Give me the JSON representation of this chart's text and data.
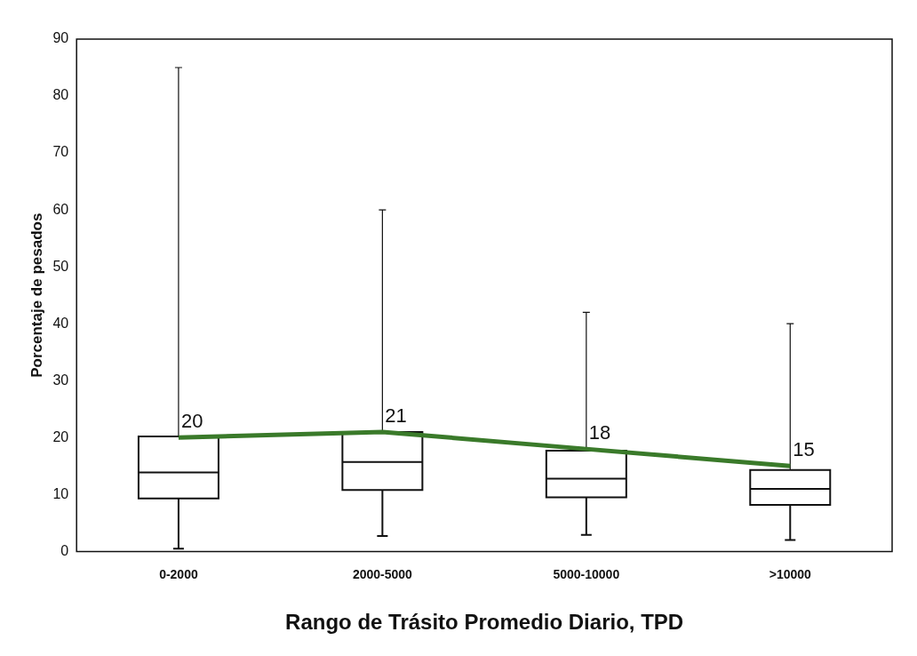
{
  "chart_data": {
    "type": "box",
    "xlabel": "Rango de Trásito Promedio Diario, TPD",
    "ylabel": "Porcentaje de pesados",
    "categories": [
      "0-2000",
      "2000-5000",
      "5000-10000",
      ">10000"
    ],
    "boxes": [
      {
        "low": 0.5,
        "q1": 9.3,
        "median": 13.9,
        "q3": 20.2,
        "high": 85
      },
      {
        "low": 2.7,
        "q1": 10.8,
        "median": 15.7,
        "q3": 21,
        "high": 60
      },
      {
        "low": 2.9,
        "q1": 9.5,
        "median": 12.8,
        "q3": 17.7,
        "high": 42
      },
      {
        "low": 2,
        "q1": 8.2,
        "median": 11,
        "q3": 14.3,
        "high": 40
      }
    ],
    "series": [
      {
        "type": "line",
        "color": "#3a7a2a",
        "values": [
          20,
          21,
          18,
          15
        ]
      }
    ],
    "data_labels": true,
    "ylim": [
      0,
      90
    ],
    "yticks": [
      0,
      10,
      20,
      30,
      40,
      50,
      60,
      70,
      80,
      90
    ],
    "grid": false
  }
}
